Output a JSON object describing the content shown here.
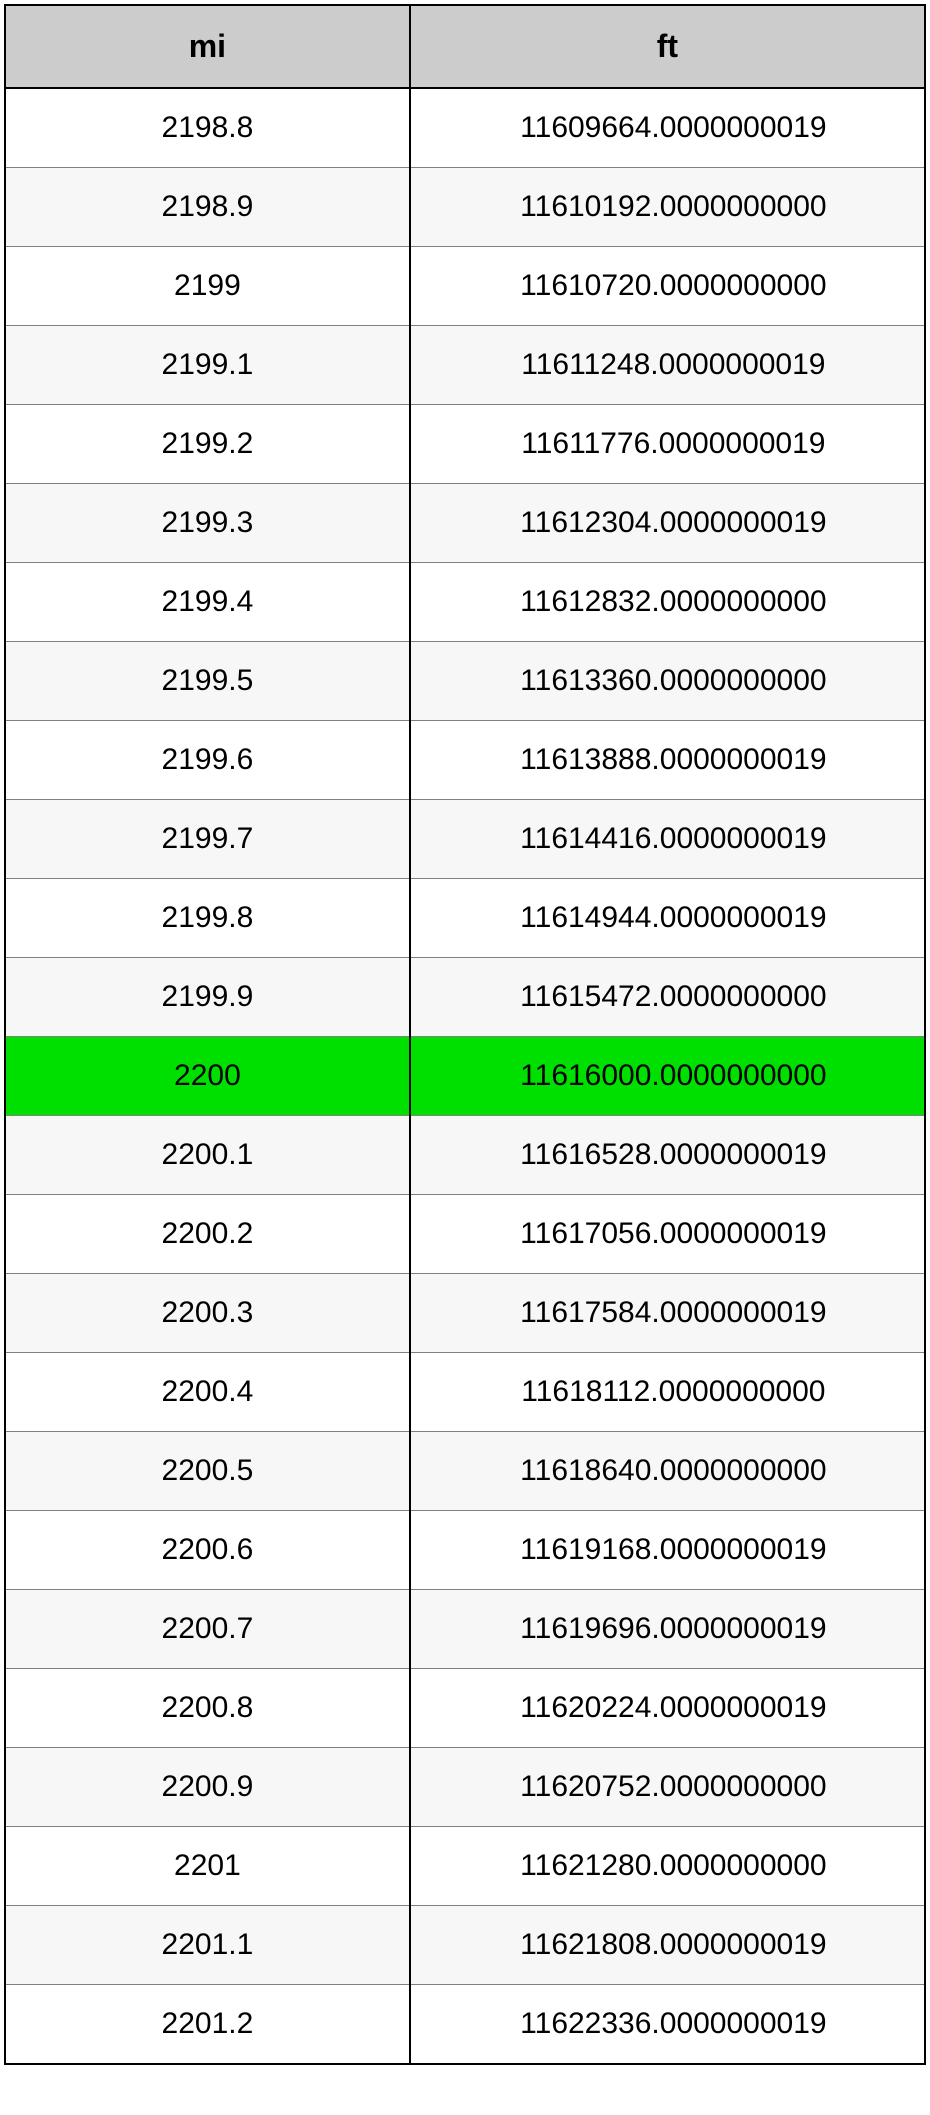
{
  "table": {
    "columns": [
      "mi",
      "ft"
    ],
    "header_bg": "#cccccc",
    "header_fontsize": 32,
    "cell_fontsize": 30,
    "border_color": "#808080",
    "outer_border_color": "#000000",
    "alt_row_bg": "#f7f7f7",
    "highlight_bg": "#00e000",
    "col_widths_pct": [
      44,
      56
    ],
    "rows": [
      {
        "mi": "2198.8",
        "ft": "11609664.0000000019",
        "highlight": false
      },
      {
        "mi": "2198.9",
        "ft": "11610192.0000000000",
        "highlight": false
      },
      {
        "mi": "2199",
        "ft": "11610720.0000000000",
        "highlight": false
      },
      {
        "mi": "2199.1",
        "ft": "11611248.0000000019",
        "highlight": false
      },
      {
        "mi": "2199.2",
        "ft": "11611776.0000000019",
        "highlight": false
      },
      {
        "mi": "2199.3",
        "ft": "11612304.0000000019",
        "highlight": false
      },
      {
        "mi": "2199.4",
        "ft": "11612832.0000000000",
        "highlight": false
      },
      {
        "mi": "2199.5",
        "ft": "11613360.0000000000",
        "highlight": false
      },
      {
        "mi": "2199.6",
        "ft": "11613888.0000000019",
        "highlight": false
      },
      {
        "mi": "2199.7",
        "ft": "11614416.0000000019",
        "highlight": false
      },
      {
        "mi": "2199.8",
        "ft": "11614944.0000000019",
        "highlight": false
      },
      {
        "mi": "2199.9",
        "ft": "11615472.0000000000",
        "highlight": false
      },
      {
        "mi": "2200",
        "ft": "11616000.0000000000",
        "highlight": true
      },
      {
        "mi": "2200.1",
        "ft": "11616528.0000000019",
        "highlight": false
      },
      {
        "mi": "2200.2",
        "ft": "11617056.0000000019",
        "highlight": false
      },
      {
        "mi": "2200.3",
        "ft": "11617584.0000000019",
        "highlight": false
      },
      {
        "mi": "2200.4",
        "ft": "11618112.0000000000",
        "highlight": false
      },
      {
        "mi": "2200.5",
        "ft": "11618640.0000000000",
        "highlight": false
      },
      {
        "mi": "2200.6",
        "ft": "11619168.0000000019",
        "highlight": false
      },
      {
        "mi": "2200.7",
        "ft": "11619696.0000000019",
        "highlight": false
      },
      {
        "mi": "2200.8",
        "ft": "11620224.0000000019",
        "highlight": false
      },
      {
        "mi": "2200.9",
        "ft": "11620752.0000000000",
        "highlight": false
      },
      {
        "mi": "2201",
        "ft": "11621280.0000000000",
        "highlight": false
      },
      {
        "mi": "2201.1",
        "ft": "11621808.0000000019",
        "highlight": false
      },
      {
        "mi": "2201.2",
        "ft": "11622336.0000000019",
        "highlight": false
      }
    ]
  }
}
